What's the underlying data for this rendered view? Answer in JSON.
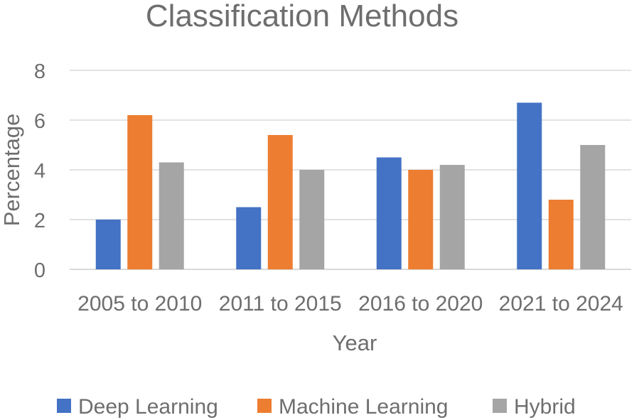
{
  "chart_data": {
    "type": "bar",
    "title": "Classification Methods",
    "xlabel": "Year",
    "ylabel": "Percentage",
    "categories": [
      "2005 to 2010",
      "2011 to 2015",
      "2016 to 2020",
      "2021 to 2024"
    ],
    "series": [
      {
        "name": "Deep Learning",
        "color": "#4472c4",
        "values": [
          2.0,
          2.5,
          4.5,
          6.7
        ]
      },
      {
        "name": "Machine Learning",
        "color": "#ed7d31",
        "values": [
          6.2,
          5.4,
          4.0,
          2.8
        ]
      },
      {
        "name": "Hybrid",
        "color": "#a5a5a5",
        "values": [
          4.3,
          4.0,
          4.2,
          5.0
        ]
      }
    ],
    "ylim": [
      0,
      8
    ],
    "yticks": [
      0,
      2,
      4,
      6,
      8
    ],
    "grid": true,
    "legend_position": "bottom"
  }
}
